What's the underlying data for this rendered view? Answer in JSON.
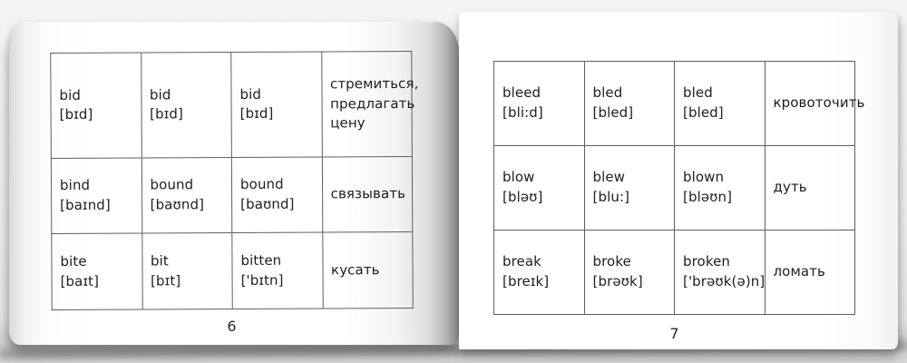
{
  "book": {
    "colors": {
      "table_border": "#5f5f5f",
      "text": "#1e1e1e",
      "page": "#ffffff",
      "backdrop": "#e9e9e9"
    },
    "left_page": {
      "page_number": "6",
      "rows": [
        {
          "base": "bid",
          "base_ipa": "[bɪd]",
          "past": "bid",
          "past_ipa": "[bɪd]",
          "participle": "bid",
          "participle_ipa": "[bɪd]",
          "translation": "стремиться, предлагать цену"
        },
        {
          "base": "bind",
          "base_ipa": "[baɪnd]",
          "past": "bound",
          "past_ipa": "[baʊnd]",
          "participle": "bound",
          "participle_ipa": "[baʊnd]",
          "translation": "связывать"
        },
        {
          "base": "bite",
          "base_ipa": "[baɪt]",
          "past": "bit",
          "past_ipa": "[bɪt]",
          "participle": "bitten",
          "participle_ipa": "['bɪtn]",
          "translation": "кусать"
        }
      ]
    },
    "right_page": {
      "page_number": "7",
      "rows": [
        {
          "base": "bleed",
          "base_ipa": "[bli:d]",
          "past": "bled",
          "past_ipa": "[bled]",
          "participle": "bled",
          "participle_ipa": "[bled]",
          "translation": "кровоточить"
        },
        {
          "base": "blow",
          "base_ipa": "[bləʊ]",
          "past": "blew",
          "past_ipa": "[blu:]",
          "participle": "blown",
          "participle_ipa": "[bləʊn]",
          "translation": "дуть"
        },
        {
          "base": "break",
          "base_ipa": "[breɪk]",
          "past": "broke",
          "past_ipa": "[brəʊk]",
          "participle": "broken",
          "participle_ipa": "['brəʊk(ə)n]",
          "translation": "ломать"
        }
      ]
    }
  }
}
